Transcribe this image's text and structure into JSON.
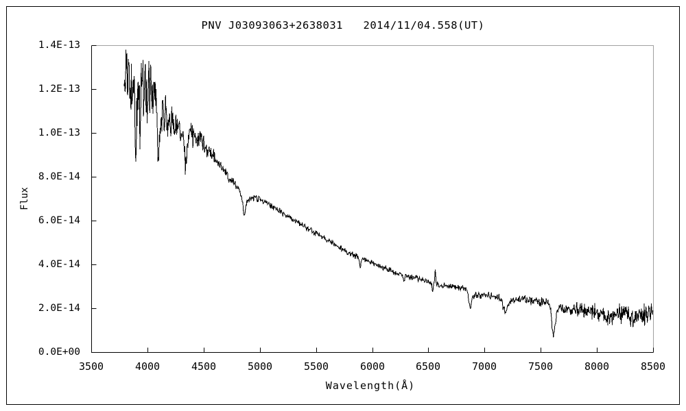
{
  "title": "PNV J03093063+2638031   2014/11/04.558(UT)",
  "axes": {
    "y_label": "Flux",
    "x_label": "Wavelength(Å)",
    "y_tick_labels": [
      "0.0E+00",
      "2.0E-14",
      "4.0E-14",
      "6.0E-14",
      "8.0E-14",
      "1.0E-13",
      "1.2E-13",
      "1.4E-13"
    ],
    "x_tick_labels": [
      "3500",
      "4000",
      "4500",
      "5000",
      "5500",
      "6000",
      "6500",
      "7000",
      "7500",
      "8000",
      "8500"
    ]
  },
  "colors": {
    "background": "#ffffff",
    "text": "#000000",
    "spectrum_line": "#000000",
    "axis": "#000000",
    "frame_top_right": "#a0a0a0",
    "outer_border": "#000000"
  },
  "chart_data": {
    "type": "line",
    "title": "PNV J03093063+2638031   2014/11/04.558(UT)",
    "xlabel": "Wavelength(Å)",
    "ylabel": "Flux",
    "grid": false,
    "legend": false,
    "xlim": [
      3500,
      8500
    ],
    "x_tick_values": [
      3500,
      4000,
      4500,
      5000,
      5500,
      6000,
      6500,
      7000,
      7500,
      8000,
      8500
    ],
    "flux_scale": "1e-14",
    "ylim_scaled": [
      0,
      14
    ],
    "y_tick_values_scaled": [
      0,
      2,
      4,
      6,
      8,
      10,
      12,
      14
    ],
    "series_name": "flux spectrum",
    "wavelength_range": [
      3793,
      8498
    ],
    "wavelength_step": 4,
    "noise_seed": 12345,
    "continuum_anchors": [
      [
        3793,
        11.6
      ],
      [
        3805,
        12.4
      ],
      [
        3820,
        12.0
      ],
      [
        3840,
        12.5
      ],
      [
        3860,
        12.1
      ],
      [
        3880,
        11.8
      ],
      [
        3895,
        11.6
      ],
      [
        3915,
        12.1
      ],
      [
        3935,
        11.7
      ],
      [
        3955,
        12.3
      ],
      [
        3975,
        11.9
      ],
      [
        3995,
        11.7
      ],
      [
        4015,
        12.1
      ],
      [
        4035,
        12.2
      ],
      [
        4060,
        11.4
      ],
      [
        4085,
        10.9
      ],
      [
        4115,
        10.5
      ],
      [
        4145,
        10.85
      ],
      [
        4175,
        10.6
      ],
      [
        4205,
        10.7
      ],
      [
        4235,
        10.45
      ],
      [
        4265,
        10.25
      ],
      [
        4300,
        10.0
      ],
      [
        4345,
        9.7
      ],
      [
        4385,
        9.95
      ],
      [
        4425,
        9.85
      ],
      [
        4465,
        9.7
      ],
      [
        4505,
        9.45
      ],
      [
        4555,
        9.15
      ],
      [
        4605,
        8.8
      ],
      [
        4655,
        8.45
      ],
      [
        4705,
        8.05
      ],
      [
        4755,
        7.75
      ],
      [
        4805,
        7.45
      ],
      [
        4845,
        7.2
      ],
      [
        4885,
        6.9
      ],
      [
        4925,
        7.0
      ],
      [
        4965,
        7.05
      ],
      [
        5005,
        6.95
      ],
      [
        5065,
        6.8
      ],
      [
        5125,
        6.6
      ],
      [
        5185,
        6.4
      ],
      [
        5245,
        6.2
      ],
      [
        5305,
        6.0
      ],
      [
        5365,
        5.85
      ],
      [
        5425,
        5.65
      ],
      [
        5485,
        5.45
      ],
      [
        5545,
        5.3
      ],
      [
        5605,
        5.1
      ],
      [
        5665,
        4.9
      ],
      [
        5725,
        4.75
      ],
      [
        5785,
        4.55
      ],
      [
        5845,
        4.4
      ],
      [
        5905,
        4.25
      ],
      [
        5965,
        4.15
      ],
      [
        6025,
        4.0
      ],
      [
        6085,
        3.9
      ],
      [
        6145,
        3.75
      ],
      [
        6205,
        3.65
      ],
      [
        6265,
        3.55
      ],
      [
        6325,
        3.45
      ],
      [
        6385,
        3.4
      ],
      [
        6445,
        3.3
      ],
      [
        6505,
        3.2
      ],
      [
        6565,
        3.1
      ],
      [
        6625,
        3.05
      ],
      [
        6685,
        3.0
      ],
      [
        6745,
        2.95
      ],
      [
        6805,
        2.9
      ],
      [
        6855,
        2.82
      ],
      [
        6905,
        2.6
      ],
      [
        6955,
        2.6
      ],
      [
        7005,
        2.6
      ],
      [
        7065,
        2.55
      ],
      [
        7125,
        2.5
      ],
      [
        7185,
        2.45
      ],
      [
        7245,
        2.35
      ],
      [
        7305,
        2.4
      ],
      [
        7365,
        2.4
      ],
      [
        7425,
        2.35
      ],
      [
        7485,
        2.3
      ],
      [
        7545,
        2.25
      ],
      [
        7605,
        2.1
      ],
      [
        7665,
        2.0
      ],
      [
        7725,
        1.95
      ],
      [
        7785,
        1.95
      ],
      [
        7845,
        1.9
      ],
      [
        7905,
        1.85
      ],
      [
        7965,
        1.85
      ],
      [
        8025,
        1.78
      ],
      [
        8105,
        1.72
      ],
      [
        8205,
        1.68
      ],
      [
        8305,
        1.62
      ],
      [
        8405,
        1.6
      ],
      [
        8498,
        1.72
      ]
    ],
    "features": [
      {
        "center": 3897,
        "sigma": 5,
        "amplitude": -3.0
      },
      {
        "center": 3933,
        "sigma": 5,
        "amplitude": -1.3
      },
      {
        "center": 3970,
        "sigma": 5,
        "amplitude": -1.0
      },
      {
        "center": 4101,
        "sigma": 9,
        "amplitude": -1.55
      },
      {
        "center": 4340,
        "sigma": 10,
        "amplitude": -1.3
      },
      {
        "center": 4861,
        "sigma": 10,
        "amplitude": -0.95
      },
      {
        "center": 5893,
        "sigma": 6,
        "amplitude": -0.45
      },
      {
        "center": 6280,
        "sigma": 7,
        "amplitude": -0.28
      },
      {
        "center": 6540,
        "sigma": 5,
        "amplitude": -0.33
      },
      {
        "center": 6562,
        "sigma": 3.5,
        "amplitude": 0.75
      },
      {
        "center": 6872,
        "sigma": 12,
        "amplitude": -0.75
      },
      {
        "center": 7186,
        "sigma": 20,
        "amplitude": -0.6
      },
      {
        "center": 7615,
        "sigma": 15,
        "amplitude": -1.3
      }
    ],
    "noise_envelope": [
      [
        3793,
        1.15
      ],
      [
        3900,
        1.1
      ],
      [
        4000,
        1.0
      ],
      [
        4100,
        0.8
      ],
      [
        4200,
        0.6
      ],
      [
        4300,
        0.5
      ],
      [
        4400,
        0.42
      ],
      [
        4550,
        0.3
      ],
      [
        4700,
        0.2
      ],
      [
        4900,
        0.13
      ],
      [
        5200,
        0.11
      ],
      [
        5600,
        0.1
      ],
      [
        6000,
        0.1
      ],
      [
        6400,
        0.1
      ],
      [
        6800,
        0.11
      ],
      [
        7200,
        0.13
      ],
      [
        7500,
        0.16
      ],
      [
        7700,
        0.22
      ],
      [
        7900,
        0.28
      ],
      [
        8100,
        0.33
      ],
      [
        8300,
        0.4
      ],
      [
        8498,
        0.48
      ]
    ]
  }
}
